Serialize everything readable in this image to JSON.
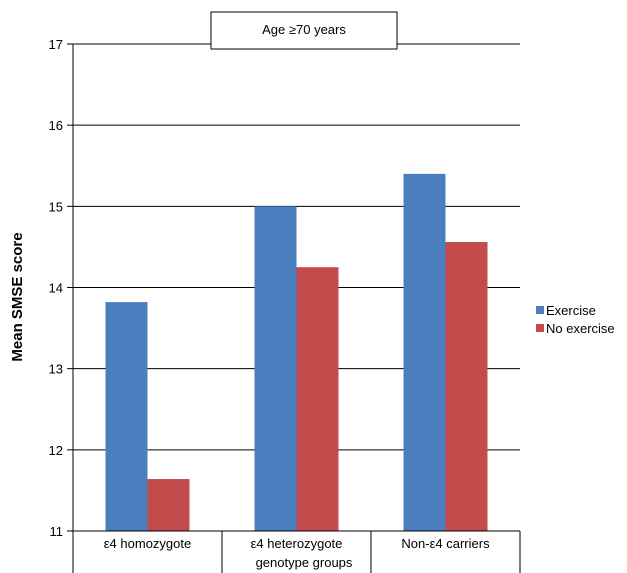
{
  "chart_data": {
    "type": "bar",
    "title": "Age ≥70 years",
    "xlabel": "genotype groups",
    "ylabel": "Mean SMSE score",
    "ylim": [
      11,
      17
    ],
    "yticks": [
      11,
      12,
      13,
      14,
      15,
      16,
      17
    ],
    "categories": [
      "ε4 homozygote",
      "ε4 heterozygote",
      "Non-ε4 carriers"
    ],
    "series": [
      {
        "name": "Exercise",
        "color": "#4a7ebf",
        "values": [
          13.82,
          15.0,
          15.4
        ]
      },
      {
        "name": "No exercise",
        "color": "#c44b4b",
        "values": [
          11.64,
          14.25,
          14.56
        ]
      }
    ],
    "grid": true,
    "legend_position": "right"
  }
}
